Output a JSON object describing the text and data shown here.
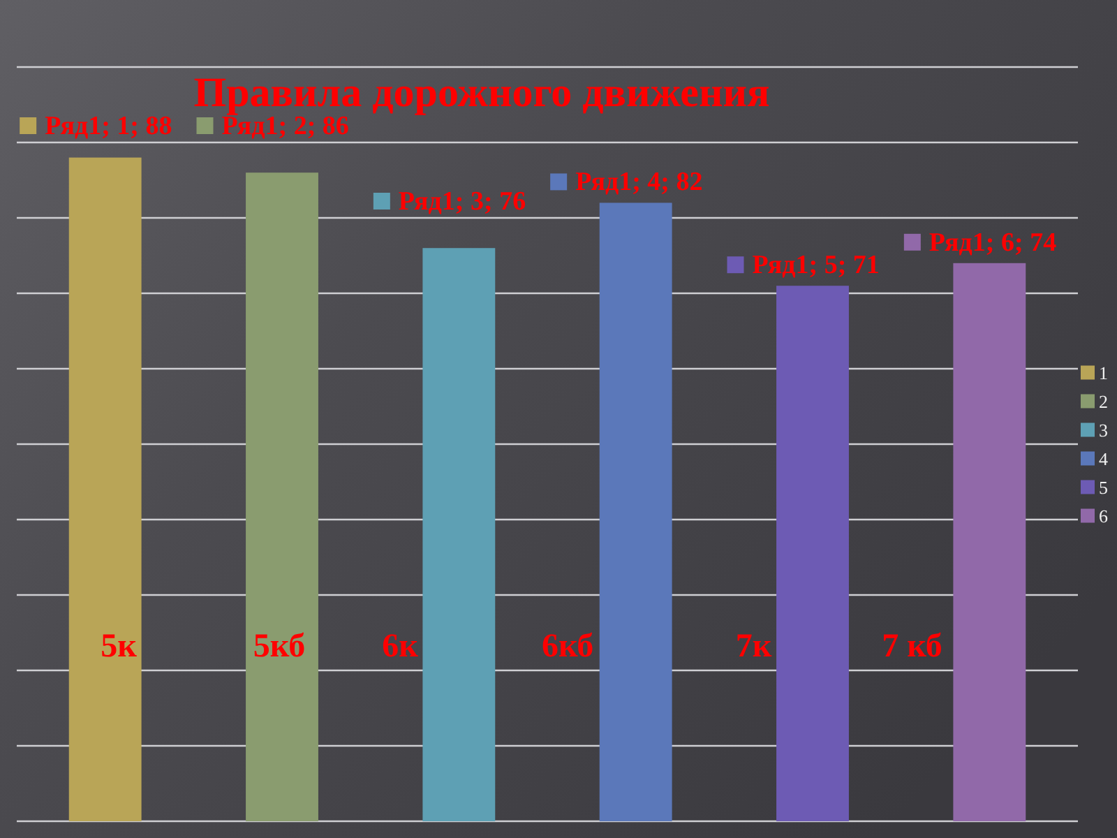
{
  "chart_data": {
    "type": "bar",
    "title": "Правила дорожного движения",
    "categories": [
      null,
      null,
      null,
      null,
      null,
      null
    ],
    "series": [
      {
        "name": "1",
        "color": "#b9a557",
        "values": [
          88,
          null,
          null,
          null,
          null,
          null
        ],
        "value_labels": [
          "Ряд1; 1; 88",
          null,
          null,
          null,
          null,
          null
        ]
      },
      {
        "name": "2",
        "color": "#8a9c6f",
        "values": [
          null,
          86,
          null,
          null,
          null,
          null
        ],
        "value_labels": [
          null,
          "Ряд1; 2; 86",
          null,
          null,
          null,
          null
        ]
      },
      {
        "name": "3",
        "color": "#5ea0b4",
        "values": [
          null,
          null,
          76,
          null,
          null,
          null
        ],
        "value_labels": [
          null,
          null,
          "Ряд1; 3; 76",
          null,
          null,
          null
        ]
      },
      {
        "name": "4",
        "color": "#5b78ba",
        "values": [
          null,
          null,
          null,
          82,
          null,
          null
        ],
        "value_labels": [
          null,
          null,
          null,
          "Ряд1; 4; 82",
          null,
          null
        ]
      },
      {
        "name": "5",
        "color": "#6d5bb4",
        "values": [
          null,
          null,
          null,
          null,
          71,
          null
        ],
        "value_labels": [
          null,
          null,
          null,
          null,
          "Ряд1; 5; 71",
          null
        ]
      },
      {
        "name": "6",
        "color": "#9169a9",
        "values": [
          null,
          null,
          null,
          null,
          null,
          74
        ],
        "value_labels": [
          null,
          null,
          null,
          null,
          null,
          "Ряд1; 6; 74"
        ]
      }
    ],
    "stacked": true,
    "ylim": [
      0,
      100
    ],
    "yticks": [
      {
        "value": 0,
        "label": null
      },
      {
        "value": 10,
        "label": null
      },
      {
        "value": 20,
        "label": null
      },
      {
        "value": 30,
        "label": null
      },
      {
        "value": 40,
        "label": null
      },
      {
        "value": 50,
        "label": null
      },
      {
        "value": 60,
        "label": null
      },
      {
        "value": 70,
        "label": null
      },
      {
        "value": 80,
        "label": null
      },
      {
        "value": 90,
        "label": null
      },
      {
        "value": 100,
        "label": null
      }
    ],
    "grid": "y",
    "legend": "right",
    "annotations": [
      "5к",
      "5кб",
      "6к",
      "6кб",
      "7к",
      "7 кб"
    ]
  }
}
